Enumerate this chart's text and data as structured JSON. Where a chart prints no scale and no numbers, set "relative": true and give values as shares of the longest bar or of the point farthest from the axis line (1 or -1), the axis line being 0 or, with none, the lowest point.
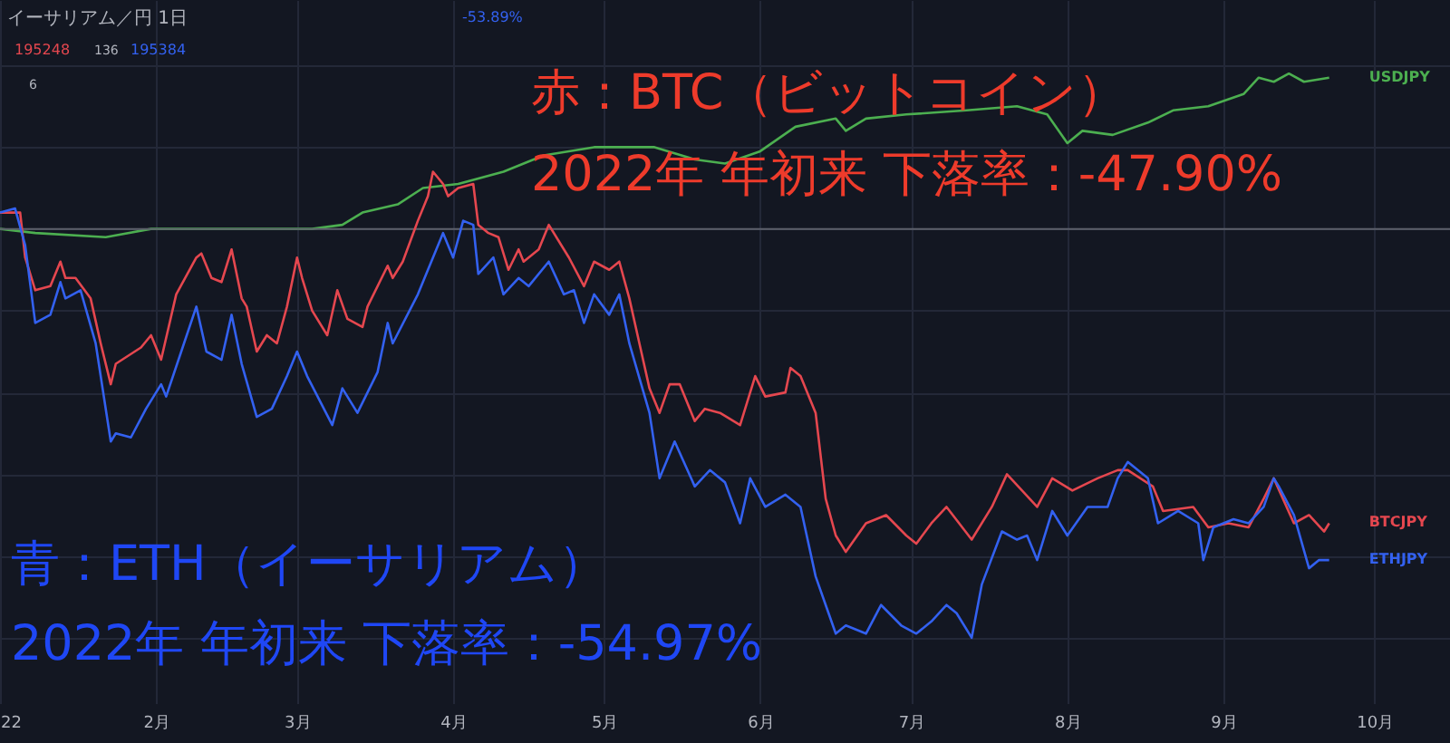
{
  "chart_data": {
    "type": "line",
    "relative": true,
    "grid": true,
    "legend": false,
    "marker": "none",
    "line_style": "solid",
    "xlim": [
      "2022-01-01",
      "2022-10-16"
    ],
    "xticks": [
      {
        "value": "2022-01-01",
        "label": "22"
      },
      {
        "value": "2022-02-01",
        "label": "2月"
      },
      {
        "value": "2022-03-01",
        "label": "3月"
      },
      {
        "value": "2022-04-01",
        "label": "4月"
      },
      {
        "value": "2022-05-01",
        "label": "5月"
      },
      {
        "value": "2022-06-01",
        "label": "6月"
      },
      {
        "value": "2022-07-01",
        "label": "7月"
      },
      {
        "value": "2022-08-01",
        "label": "8月"
      },
      {
        "value": "2022-09-01",
        "label": "9月"
      },
      {
        "value": "2022-10-01",
        "label": "10月"
      }
    ],
    "annotations": [
      "イーサリアム／円 1日",
      "-53.89%",
      "195248",
      "136",
      "195384",
      "6",
      "赤：BTC（ビットコイン）",
      "2022年 年初来 下落率：-47.90%",
      "青：ETH（イーサリアム）",
      "2022年 年初来 下落率：-54.97%"
    ],
    "series": [
      {
        "name": "USDJPY",
        "color": "#4caf50",
        "x": [
          "2022-01-01",
          "2022-01-08",
          "2022-01-22",
          "2022-01-31",
          "2022-02-12",
          "2022-02-24",
          "2022-03-04",
          "2022-03-10",
          "2022-03-14",
          "2022-03-21",
          "2022-03-26",
          "2022-04-02",
          "2022-04-11",
          "2022-04-19",
          "2022-04-29",
          "2022-05-11",
          "2022-05-19",
          "2022-05-25",
          "2022-06-01",
          "2022-06-08",
          "2022-06-16",
          "2022-06-18",
          "2022-06-22",
          "2022-06-30",
          "2022-07-12",
          "2022-07-22",
          "2022-07-28",
          "2022-08-01",
          "2022-08-04",
          "2022-08-10",
          "2022-08-17",
          "2022-08-22",
          "2022-08-29",
          "2022-09-05",
          "2022-09-08",
          "2022-09-11",
          "2022-09-14",
          "2022-09-17",
          "2022-09-22"
        ],
        "values": [
          0,
          -0.01,
          -0.02,
          0.0,
          0.0,
          0,
          0.0,
          0.01,
          0.04,
          0.06,
          0.1,
          0.11,
          0.14,
          0.18,
          0.2,
          0.2,
          0.17,
          0.16,
          0.19,
          0.25,
          0.27,
          0.24,
          0.27,
          0.28,
          0.29,
          0.3,
          0.28,
          0.21,
          0.24,
          0.23,
          0.26,
          0.29,
          0.3,
          0.33,
          0.37,
          0.36,
          0.38,
          0.36,
          0.37
        ]
      },
      {
        "name": "BTCJPY",
        "color": "#e5474f",
        "x": [
          "2022-01-01",
          "2022-01-05",
          "2022-01-06",
          "2022-01-08",
          "2022-01-11",
          "2022-01-13",
          "2022-01-14",
          "2022-01-16",
          "2022-01-19",
          "2022-01-21",
          "2022-01-23",
          "2022-01-24",
          "2022-01-29",
          "2022-01-31",
          "2022-02-02",
          "2022-02-05",
          "2022-02-09",
          "2022-02-10",
          "2022-02-12",
          "2022-02-14",
          "2022-02-16",
          "2022-02-18",
          "2022-02-19",
          "2022-02-21",
          "2022-02-23",
          "2022-02-25",
          "2022-02-27",
          "2022-03-01",
          "2022-03-02",
          "2022-03-04",
          "2022-03-07",
          "2022-03-09",
          "2022-03-11",
          "2022-03-14",
          "2022-03-15",
          "2022-03-19",
          "2022-03-20",
          "2022-03-22",
          "2022-03-25",
          "2022-03-27",
          "2022-03-28",
          "2022-03-30",
          "2022-03-31",
          "2022-04-02",
          "2022-04-05",
          "2022-04-06",
          "2022-04-08",
          "2022-04-10",
          "2022-04-12",
          "2022-04-14",
          "2022-04-15",
          "2022-04-18",
          "2022-04-20",
          "2022-04-23",
          "2022-04-24",
          "2022-04-27",
          "2022-04-29",
          "2022-05-02",
          "2022-05-04",
          "2022-05-06",
          "2022-05-08",
          "2022-05-10",
          "2022-05-12",
          "2022-05-14",
          "2022-05-16",
          "2022-05-19",
          "2022-05-21",
          "2022-05-24",
          "2022-05-28",
          "2022-05-31",
          "2022-06-02",
          "2022-06-06",
          "2022-06-07",
          "2022-06-09",
          "2022-06-12",
          "2022-06-14",
          "2022-06-16",
          "2022-06-18",
          "2022-06-22",
          "2022-06-26",
          "2022-06-30",
          "2022-07-02",
          "2022-07-05",
          "2022-07-08",
          "2022-07-13",
          "2022-07-17",
          "2022-07-20",
          "2022-07-23",
          "2022-07-26",
          "2022-07-29",
          "2022-08-02",
          "2022-08-07",
          "2022-08-11",
          "2022-08-13",
          "2022-08-18",
          "2022-08-20",
          "2022-08-26",
          "2022-08-29",
          "2022-09-02",
          "2022-09-06",
          "2022-09-09",
          "2022-09-11",
          "2022-09-15",
          "2022-09-18",
          "2022-09-21",
          "2022-09-22"
        ],
        "values": [
          0.04,
          0.04,
          -0.07,
          -0.15,
          -0.14,
          -0.08,
          -0.12,
          -0.12,
          -0.17,
          -0.28,
          -0.38,
          -0.33,
          -0.29,
          -0.26,
          -0.32,
          -0.16,
          -0.07,
          -0.06,
          -0.12,
          -0.13,
          -0.05,
          -0.17,
          -0.19,
          -0.3,
          -0.26,
          -0.28,
          -0.19,
          -0.07,
          -0.12,
          -0.2,
          -0.26,
          -0.15,
          -0.22,
          -0.24,
          -0.19,
          -0.09,
          -0.12,
          -0.08,
          0.02,
          0.08,
          0.14,
          0.11,
          0.08,
          0.1,
          0.11,
          0.01,
          -0.01,
          -0.02,
          -0.1,
          -0.05,
          -0.08,
          -0.05,
          0.01,
          -0.05,
          -0.07,
          -0.14,
          -0.08,
          -0.1,
          -0.08,
          -0.17,
          -0.28,
          -0.39,
          -0.45,
          -0.38,
          -0.38,
          -0.47,
          -0.44,
          -0.45,
          -0.48,
          -0.36,
          -0.41,
          -0.4,
          -0.34,
          -0.36,
          -0.45,
          -0.66,
          -0.75,
          -0.79,
          -0.72,
          -0.7,
          -0.75,
          -0.77,
          -0.72,
          -0.68,
          -0.76,
          -0.68,
          -0.6,
          -0.64,
          -0.68,
          -0.61,
          -0.64,
          -0.61,
          -0.59,
          -0.59,
          -0.63,
          -0.69,
          -0.68,
          -0.73,
          -0.72,
          -0.73,
          -0.66,
          -0.61,
          -0.72,
          -0.7,
          -0.74,
          -0.72
        ]
      },
      {
        "name": "ETHJPY",
        "color": "#3361f0",
        "x": [
          "2022-01-01",
          "2022-01-04",
          "2022-01-06",
          "2022-01-08",
          "2022-01-11",
          "2022-01-13",
          "2022-01-14",
          "2022-01-17",
          "2022-01-20",
          "2022-01-23",
          "2022-01-24",
          "2022-01-27",
          "2022-01-30",
          "2022-02-02",
          "2022-02-03",
          "2022-02-06",
          "2022-02-09",
          "2022-02-11",
          "2022-02-14",
          "2022-02-16",
          "2022-02-18",
          "2022-02-21",
          "2022-02-24",
          "2022-02-27",
          "2022-03-01",
          "2022-03-03",
          "2022-03-08",
          "2022-03-10",
          "2022-03-13",
          "2022-03-17",
          "2022-03-19",
          "2022-03-20",
          "2022-03-25",
          "2022-03-28",
          "2022-03-30",
          "2022-04-01",
          "2022-04-03",
          "2022-04-05",
          "2022-04-06",
          "2022-04-09",
          "2022-04-11",
          "2022-04-14",
          "2022-04-16",
          "2022-04-20",
          "2022-04-23",
          "2022-04-25",
          "2022-04-27",
          "2022-04-29",
          "2022-05-02",
          "2022-05-04",
          "2022-05-06",
          "2022-05-10",
          "2022-05-12",
          "2022-05-15",
          "2022-05-19",
          "2022-05-22",
          "2022-05-25",
          "2022-05-28",
          "2022-05-30",
          "2022-06-02",
          "2022-06-06",
          "2022-06-09",
          "2022-06-12",
          "2022-06-14",
          "2022-06-16",
          "2022-06-18",
          "2022-06-22",
          "2022-06-25",
          "2022-06-29",
          "2022-07-02",
          "2022-07-05",
          "2022-07-08",
          "2022-07-10",
          "2022-07-13",
          "2022-07-15",
          "2022-07-19",
          "2022-07-22",
          "2022-07-24",
          "2022-07-26",
          "2022-07-29",
          "2022-08-01",
          "2022-08-05",
          "2022-08-09",
          "2022-08-11",
          "2022-08-13",
          "2022-08-17",
          "2022-08-19",
          "2022-08-23",
          "2022-08-27",
          "2022-08-28",
          "2022-08-30",
          "2022-09-03",
          "2022-09-06",
          "2022-09-09",
          "2022-09-11",
          "2022-09-12",
          "2022-09-15",
          "2022-09-18",
          "2022-09-20",
          "2022-09-22"
        ],
        "values": [
          0.04,
          0.05,
          -0.04,
          -0.23,
          -0.21,
          -0.13,
          -0.17,
          -0.15,
          -0.28,
          -0.52,
          -0.5,
          -0.51,
          -0.44,
          -0.38,
          -0.41,
          -0.3,
          -0.19,
          -0.3,
          -0.32,
          -0.21,
          -0.33,
          -0.46,
          -0.44,
          -0.36,
          -0.3,
          -0.36,
          -0.48,
          -0.39,
          -0.45,
          -0.35,
          -0.23,
          -0.28,
          -0.16,
          -0.07,
          -0.01,
          -0.07,
          0.02,
          0.01,
          -0.11,
          -0.07,
          -0.16,
          -0.12,
          -0.14,
          -0.08,
          -0.16,
          -0.15,
          -0.23,
          -0.16,
          -0.21,
          -0.16,
          -0.28,
          -0.45,
          -0.61,
          -0.52,
          -0.63,
          -0.59,
          -0.62,
          -0.72,
          -0.61,
          -0.68,
          -0.65,
          -0.68,
          -0.85,
          -0.92,
          -0.99,
          -0.97,
          -0.99,
          -0.92,
          -0.97,
          -0.99,
          -0.96,
          -0.92,
          -0.94,
          -1,
          -0.87,
          -0.74,
          -0.76,
          -0.75,
          -0.81,
          -0.69,
          -0.75,
          -0.68,
          -0.68,
          -0.61,
          -0.57,
          -0.61,
          -0.72,
          -0.69,
          -0.72,
          -0.81,
          -0.73,
          -0.71,
          -0.72,
          -0.68,
          -0.61,
          -0.63,
          -0.7,
          -0.83,
          -0.81,
          -0.81
        ]
      }
    ]
  }
}
